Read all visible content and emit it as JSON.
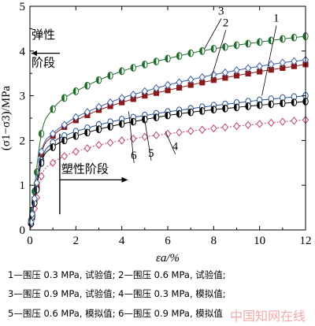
{
  "chart_data": {
    "type": "line",
    "xlabel": "εa/%",
    "ylabel": "(σ1−σ3)/MPa",
    "xlim": [
      0,
      12
    ],
    "ylim": [
      0,
      5
    ],
    "xticks": [
      "0",
      "2",
      "4",
      "6",
      "8",
      "10",
      "12"
    ],
    "yticks": [
      "0",
      "1",
      "2",
      "3",
      "4",
      "5"
    ],
    "annotations": {
      "elastic_stage": "弹性阶段",
      "elastic_line1": "弹性",
      "elastic_line2": "阶段",
      "plastic_stage": "塑性阶段",
      "boundary_strain": 1.3
    },
    "curve_labels": [
      "1",
      "2",
      "3",
      "4",
      "5",
      "6"
    ],
    "series": [
      {
        "name": "1",
        "kind": "试验值",
        "confining_pressure": "0.3 MPa",
        "color": "#1f4e8c",
        "marker": "open-circle",
        "x": [
          0,
          0.5,
          1,
          1.5,
          2,
          3,
          4,
          5,
          6,
          7,
          8,
          9,
          10,
          11,
          12
        ],
        "values": [
          0,
          1.55,
          1.95,
          2.1,
          2.2,
          2.35,
          2.47,
          2.56,
          2.64,
          2.71,
          2.78,
          2.84,
          2.9,
          2.95,
          3.0
        ]
      },
      {
        "name": "2",
        "kind": "试验值",
        "confining_pressure": "0.6 MPa",
        "color": "#8b1a1a",
        "marker": "filled-square",
        "x": [
          0,
          0.5,
          1,
          1.5,
          2,
          3,
          4,
          5,
          6,
          7,
          8,
          9,
          10,
          11,
          12
        ],
        "values": [
          0,
          1.7,
          2.1,
          2.3,
          2.45,
          2.68,
          2.85,
          3.0,
          3.12,
          3.24,
          3.35,
          3.45,
          3.54,
          3.62,
          3.7
        ]
      },
      {
        "name": "3",
        "kind": "试验值",
        "confining_pressure": "0.9 MPa",
        "color": "#1f6b2a",
        "marker": "half-filled-circle",
        "x": [
          0,
          0.5,
          1,
          1.5,
          2,
          3,
          4,
          5,
          6,
          7,
          8,
          9,
          10,
          11,
          12
        ],
        "values": [
          0,
          2.15,
          2.7,
          2.95,
          3.1,
          3.35,
          3.55,
          3.7,
          3.83,
          3.95,
          4.05,
          4.13,
          4.2,
          4.27,
          4.33
        ]
      },
      {
        "name": "4",
        "kind": "模拟值",
        "confining_pressure": "0.3 MPa",
        "color": "#c0406a",
        "marker": "open-diamond",
        "x": [
          0,
          0.5,
          1,
          1.5,
          2,
          3,
          4,
          5,
          6,
          7,
          8,
          9,
          10,
          11,
          12
        ],
        "values": [
          0,
          1.2,
          1.5,
          1.65,
          1.75,
          1.9,
          2.0,
          2.08,
          2.15,
          2.21,
          2.27,
          2.32,
          2.37,
          2.42,
          2.46
        ]
      },
      {
        "name": "5",
        "kind": "模拟值",
        "confining_pressure": "0.6 MPa",
        "color": "#000000",
        "marker": "half-filled-circle",
        "x": [
          0,
          0.5,
          1,
          1.5,
          2,
          3,
          4,
          5,
          6,
          7,
          8,
          9,
          10,
          11,
          12
        ],
        "values": [
          0,
          1.5,
          1.85,
          2.0,
          2.1,
          2.25,
          2.37,
          2.47,
          2.56,
          2.63,
          2.69,
          2.74,
          2.79,
          2.83,
          2.87
        ]
      },
      {
        "name": "6",
        "kind": "模拟值",
        "confining_pressure": "0.9 MPa",
        "color": "#3a5fa8",
        "marker": "open-diamond",
        "x": [
          0,
          0.5,
          1,
          1.5,
          2,
          3,
          4,
          5,
          6,
          7,
          8,
          9,
          10,
          11,
          12
        ],
        "values": [
          0,
          1.75,
          2.15,
          2.35,
          2.52,
          2.75,
          2.95,
          3.1,
          3.24,
          3.36,
          3.47,
          3.57,
          3.66,
          3.74,
          3.8
        ]
      }
    ]
  },
  "legend": {
    "row1": "1—围压 0.3 MPa, 试验值; 2—围压 0.6 MPa, 试验值;",
    "row2": "3—围压 0.9 MPa, 试验值; 4—围压 0.3 MPa, 模拟值;",
    "row3": "5—围压 0.6 MPa, 模拟值; 6—围压 0.9 MPa, 模拟值"
  },
  "watermark": "中国知网在线"
}
